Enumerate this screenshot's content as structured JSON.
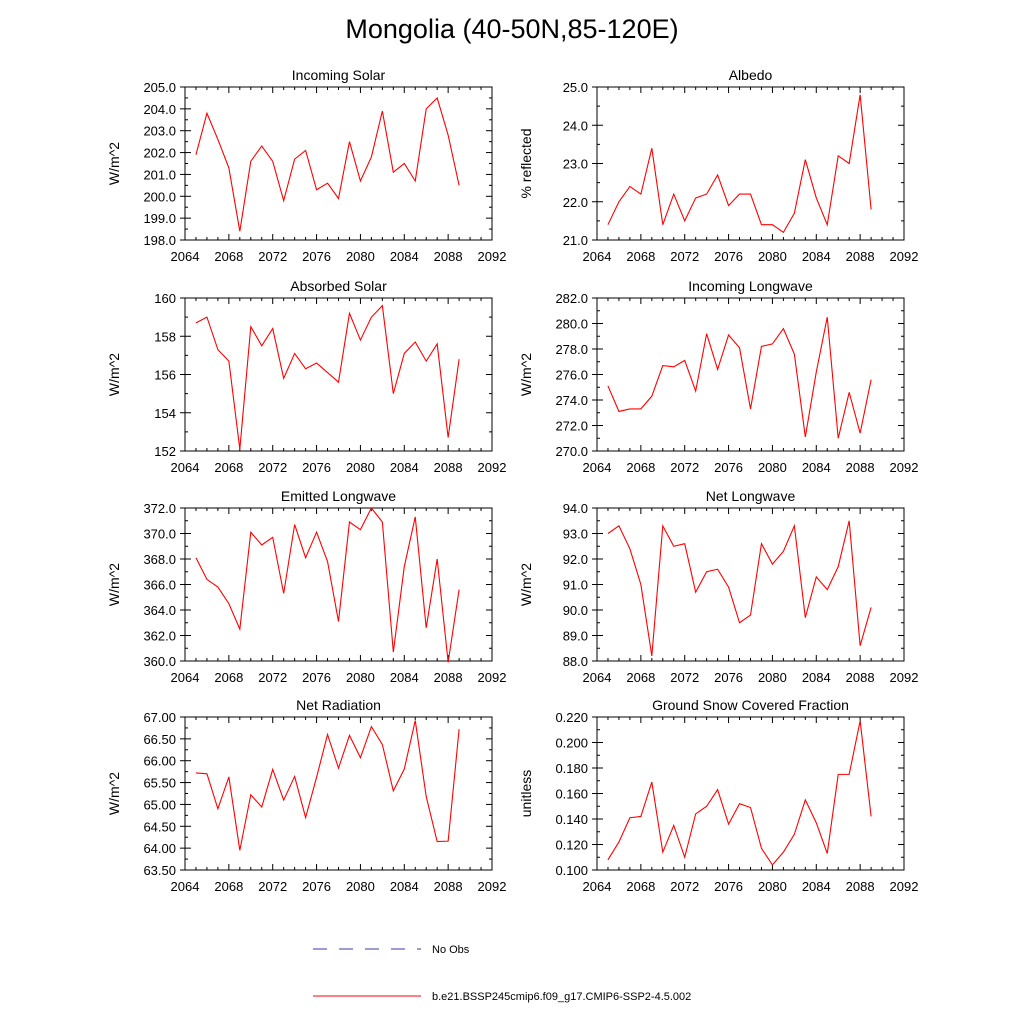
{
  "title": "Mongolia (40-50N,85-120E)",
  "colors": {
    "series": "#ff0000",
    "obs": "#3a3aa8",
    "axis": "#000000"
  },
  "legend": {
    "entries": [
      {
        "label": "No Obs",
        "style": "dashed",
        "color": "#3a3aa8"
      },
      {
        "label": "b.e21.BSSP245cmip6.f09_g17.CMIP6-SSP2-4.5.002",
        "style": "solid",
        "color": "#ff0000"
      }
    ]
  },
  "chart_data": [
    {
      "type": "line",
      "title": "Incoming Solar",
      "ylabel": "W/m^2",
      "xlim": [
        2064,
        2092
      ],
      "ylim": [
        198.0,
        205.0
      ],
      "xticks": [
        2064,
        2068,
        2072,
        2076,
        2080,
        2084,
        2088,
        2092
      ],
      "xtick_labels": [
        "2064",
        "2068",
        "2072",
        "2076",
        "2080",
        "2084",
        "2088",
        "2092"
      ],
      "yticks": [
        198.0,
        199.0,
        200.0,
        201.0,
        202.0,
        203.0,
        204.0,
        205.0
      ],
      "ytick_labels": [
        "198.0",
        "199.0",
        "200.0",
        "201.0",
        "202.0",
        "203.0",
        "204.0",
        "205.0"
      ],
      "x": [
        2065,
        2066,
        2067,
        2068,
        2069,
        2070,
        2071,
        2072,
        2073,
        2074,
        2075,
        2076,
        2077,
        2078,
        2079,
        2080,
        2081,
        2082,
        2083,
        2084,
        2085,
        2086,
        2087,
        2088,
        2089
      ],
      "series": [
        {
          "name": "b.e21.BSSP245cmip6.f09_g17.CMIP6-SSP2-4.5.002",
          "values": [
            201.9,
            203.8,
            202.6,
            201.3,
            198.4,
            201.6,
            202.3,
            201.6,
            199.8,
            201.7,
            202.1,
            200.3,
            200.6,
            199.9,
            202.5,
            200.7,
            201.8,
            203.9,
            201.1,
            201.5,
            200.7,
            204.0,
            204.5,
            202.8,
            200.5
          ]
        }
      ]
    },
    {
      "type": "line",
      "title": "Albedo",
      "ylabel": "% reflected",
      "xlim": [
        2064,
        2092
      ],
      "ylim": [
        21.0,
        25.0
      ],
      "xticks": [
        2064,
        2068,
        2072,
        2076,
        2080,
        2084,
        2088,
        2092
      ],
      "xtick_labels": [
        "2064",
        "2068",
        "2072",
        "2076",
        "2080",
        "2084",
        "2088",
        "2092"
      ],
      "yticks": [
        21.0,
        22.0,
        23.0,
        24.0,
        25.0
      ],
      "ytick_labels": [
        "21.0",
        "22.0",
        "23.0",
        "24.0",
        "25.0"
      ],
      "x": [
        2065,
        2066,
        2067,
        2068,
        2069,
        2070,
        2071,
        2072,
        2073,
        2074,
        2075,
        2076,
        2077,
        2078,
        2079,
        2080,
        2081,
        2082,
        2083,
        2084,
        2085,
        2086,
        2087,
        2088,
        2089
      ],
      "series": [
        {
          "name": "b.e21.BSSP245cmip6.f09_g17.CMIP6-SSP2-4.5.002",
          "values": [
            21.4,
            22.0,
            22.4,
            22.2,
            23.4,
            21.4,
            22.2,
            21.5,
            22.1,
            22.2,
            22.7,
            21.9,
            22.2,
            22.2,
            21.4,
            21.4,
            21.2,
            21.7,
            23.1,
            22.1,
            21.4,
            23.2,
            23.0,
            24.8,
            21.8
          ]
        }
      ]
    },
    {
      "type": "line",
      "title": "Absorbed Solar",
      "ylabel": "W/m^2",
      "xlim": [
        2064,
        2092
      ],
      "ylim": [
        152,
        160
      ],
      "xticks": [
        2064,
        2068,
        2072,
        2076,
        2080,
        2084,
        2088,
        2092
      ],
      "xtick_labels": [
        "2064",
        "2068",
        "2072",
        "2076",
        "2080",
        "2084",
        "2088",
        "2092"
      ],
      "yticks": [
        152,
        154,
        156,
        158,
        160
      ],
      "ytick_labels": [
        "152",
        "154",
        "156",
        "158",
        "160"
      ],
      "x": [
        2065,
        2066,
        2067,
        2068,
        2069,
        2070,
        2071,
        2072,
        2073,
        2074,
        2075,
        2076,
        2077,
        2078,
        2079,
        2080,
        2081,
        2082,
        2083,
        2084,
        2085,
        2086,
        2087,
        2088,
        2089
      ],
      "series": [
        {
          "name": "b.e21.BSSP245cmip6.f09_g17.CMIP6-SSP2-4.5.002",
          "values": [
            158.7,
            159.0,
            157.3,
            156.7,
            152.1,
            158.5,
            157.5,
            158.4,
            155.8,
            157.1,
            156.3,
            156.6,
            156.1,
            155.6,
            159.2,
            157.8,
            159.0,
            159.6,
            155.0,
            157.1,
            157.7,
            156.7,
            157.6,
            152.7,
            156.8
          ]
        }
      ]
    },
    {
      "type": "line",
      "title": "Incoming Longwave",
      "ylabel": "W/m^2",
      "xlim": [
        2064,
        2092
      ],
      "ylim": [
        270.0,
        282.0
      ],
      "xticks": [
        2064,
        2068,
        2072,
        2076,
        2080,
        2084,
        2088,
        2092
      ],
      "xtick_labels": [
        "2064",
        "2068",
        "2072",
        "2076",
        "2080",
        "2084",
        "2088",
        "2092"
      ],
      "yticks": [
        270.0,
        272.0,
        274.0,
        276.0,
        278.0,
        280.0,
        282.0
      ],
      "ytick_labels": [
        "270.0",
        "272.0",
        "274.0",
        "276.0",
        "278.0",
        "280.0",
        "282.0"
      ],
      "x": [
        2065,
        2066,
        2067,
        2068,
        2069,
        2070,
        2071,
        2072,
        2073,
        2074,
        2075,
        2076,
        2077,
        2078,
        2079,
        2080,
        2081,
        2082,
        2083,
        2084,
        2085,
        2086,
        2087,
        2088,
        2089
      ],
      "series": [
        {
          "name": "b.e21.BSSP245cmip6.f09_g17.CMIP6-SSP2-4.5.002",
          "values": [
            275.1,
            273.1,
            273.3,
            273.3,
            274.3,
            276.7,
            276.6,
            277.1,
            274.7,
            279.2,
            276.4,
            279.1,
            278.1,
            273.3,
            278.2,
            278.4,
            279.6,
            277.6,
            271.1,
            276.2,
            280.5,
            271.0,
            274.6,
            271.4,
            275.6
          ]
        }
      ]
    },
    {
      "type": "line",
      "title": "Emitted Longwave",
      "ylabel": "W/m^2",
      "xlim": [
        2064,
        2092
      ],
      "ylim": [
        360.0,
        372.0
      ],
      "xticks": [
        2064,
        2068,
        2072,
        2076,
        2080,
        2084,
        2088,
        2092
      ],
      "xtick_labels": [
        "2064",
        "2068",
        "2072",
        "2076",
        "2080",
        "2084",
        "2088",
        "2092"
      ],
      "yticks": [
        360.0,
        362.0,
        364.0,
        366.0,
        368.0,
        370.0,
        372.0
      ],
      "ytick_labels": [
        "360.0",
        "362.0",
        "364.0",
        "366.0",
        "368.0",
        "370.0",
        "372.0"
      ],
      "x": [
        2065,
        2066,
        2067,
        2068,
        2069,
        2070,
        2071,
        2072,
        2073,
        2074,
        2075,
        2076,
        2077,
        2078,
        2079,
        2080,
        2081,
        2082,
        2083,
        2084,
        2085,
        2086,
        2087,
        2088,
        2089
      ],
      "series": [
        {
          "name": "b.e21.BSSP245cmip6.f09_g17.CMIP6-SSP2-4.5.002",
          "values": [
            368.1,
            366.4,
            365.8,
            364.5,
            362.5,
            370.1,
            369.1,
            369.7,
            365.3,
            370.7,
            368.1,
            370.1,
            367.8,
            363.1,
            370.9,
            370.3,
            372.0,
            370.9,
            360.7,
            367.4,
            371.3,
            362.6,
            368.0,
            359.9,
            365.6
          ]
        }
      ]
    },
    {
      "type": "line",
      "title": "Net Longwave",
      "ylabel": "W/m^2",
      "xlim": [
        2064,
        2092
      ],
      "ylim": [
        88.0,
        94.0
      ],
      "xticks": [
        2064,
        2068,
        2072,
        2076,
        2080,
        2084,
        2088,
        2092
      ],
      "xtick_labels": [
        "2064",
        "2068",
        "2072",
        "2076",
        "2080",
        "2084",
        "2088",
        "2092"
      ],
      "yticks": [
        88.0,
        89.0,
        90.0,
        91.0,
        92.0,
        93.0,
        94.0
      ],
      "ytick_labels": [
        "88.0",
        "89.0",
        "90.0",
        "91.0",
        "92.0",
        "93.0",
        "94.0"
      ],
      "x": [
        2065,
        2066,
        2067,
        2068,
        2069,
        2070,
        2071,
        2072,
        2073,
        2074,
        2075,
        2076,
        2077,
        2078,
        2079,
        2080,
        2081,
        2082,
        2083,
        2084,
        2085,
        2086,
        2087,
        2088,
        2089
      ],
      "series": [
        {
          "name": "b.e21.BSSP245cmip6.f09_g17.CMIP6-SSP2-4.5.002",
          "values": [
            93.0,
            93.3,
            92.4,
            91.0,
            88.2,
            93.3,
            92.5,
            92.6,
            90.7,
            91.5,
            91.6,
            90.9,
            89.5,
            89.8,
            92.6,
            91.8,
            92.3,
            93.3,
            89.7,
            91.3,
            90.8,
            91.7,
            93.5,
            88.6,
            90.1
          ]
        }
      ]
    },
    {
      "type": "line",
      "title": "Net Radiation",
      "ylabel": "W/m^2",
      "xlim": [
        2064,
        2092
      ],
      "ylim": [
        63.5,
        67.0
      ],
      "xticks": [
        2064,
        2068,
        2072,
        2076,
        2080,
        2084,
        2088,
        2092
      ],
      "xtick_labels": [
        "2064",
        "2068",
        "2072",
        "2076",
        "2080",
        "2084",
        "2088",
        "2092"
      ],
      "yticks": [
        63.5,
        64.0,
        64.5,
        65.0,
        65.5,
        66.0,
        66.5,
        67.0
      ],
      "ytick_labels": [
        "63.50",
        "64.00",
        "64.50",
        "65.00",
        "65.50",
        "66.00",
        "66.50",
        "67.00"
      ],
      "x": [
        2065,
        2066,
        2067,
        2068,
        2069,
        2070,
        2071,
        2072,
        2073,
        2074,
        2075,
        2076,
        2077,
        2078,
        2079,
        2080,
        2081,
        2082,
        2083,
        2084,
        2085,
        2086,
        2087,
        2088,
        2089
      ],
      "series": [
        {
          "name": "b.e21.BSSP245cmip6.f09_g17.CMIP6-SSP2-4.5.002",
          "values": [
            65.72,
            65.7,
            64.9,
            65.63,
            63.95,
            65.22,
            64.94,
            65.8,
            65.1,
            65.64,
            64.7,
            65.62,
            66.6,
            65.83,
            66.58,
            66.07,
            66.78,
            66.37,
            65.31,
            65.81,
            66.92,
            65.18,
            64.15,
            64.16,
            66.72
          ]
        }
      ]
    },
    {
      "type": "line",
      "title": "Ground Snow Covered Fraction",
      "ylabel": "unitless",
      "xlim": [
        2064,
        2092
      ],
      "ylim": [
        0.1,
        0.22
      ],
      "xticks": [
        2064,
        2068,
        2072,
        2076,
        2080,
        2084,
        2088,
        2092
      ],
      "xtick_labels": [
        "2064",
        "2068",
        "2072",
        "2076",
        "2080",
        "2084",
        "2088",
        "2092"
      ],
      "yticks": [
        0.1,
        0.12,
        0.14,
        0.16,
        0.18,
        0.2,
        0.22
      ],
      "ytick_labels": [
        "0.100",
        "0.120",
        "0.140",
        "0.160",
        "0.180",
        "0.200",
        "0.220"
      ],
      "x": [
        2065,
        2066,
        2067,
        2068,
        2069,
        2070,
        2071,
        2072,
        2073,
        2074,
        2075,
        2076,
        2077,
        2078,
        2079,
        2080,
        2081,
        2082,
        2083,
        2084,
        2085,
        2086,
        2087,
        2088,
        2089
      ],
      "series": [
        {
          "name": "b.e21.BSSP245cmip6.f09_g17.CMIP6-SSP2-4.5.002",
          "values": [
            0.108,
            0.122,
            0.141,
            0.142,
            0.169,
            0.114,
            0.135,
            0.11,
            0.144,
            0.15,
            0.163,
            0.136,
            0.152,
            0.149,
            0.117,
            0.104,
            0.114,
            0.128,
            0.155,
            0.137,
            0.113,
            0.175,
            0.175,
            0.217,
            0.142
          ]
        }
      ]
    }
  ]
}
